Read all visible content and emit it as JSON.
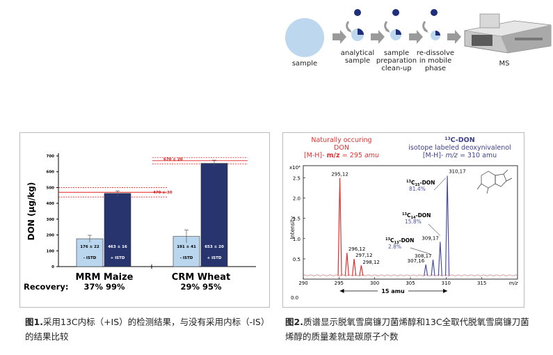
{
  "workflow": {
    "steps": [
      "sample",
      "analytical\nsample",
      "sample\npreparation\nclean-up",
      "re-dissolve\nin mobile\nphase",
      "MS"
    ],
    "colors": {
      "light": "#bcd7ee",
      "dark": "#1f2f7a",
      "arrow": "#9a9a9a"
    }
  },
  "figure1": {
    "chart_data": {
      "type": "bar",
      "ylabel": "DON (μg/kg)",
      "ylim": [
        0,
        700
      ],
      "yticks": [
        0,
        100,
        200,
        300,
        400,
        500,
        600,
        700
      ],
      "groups": [
        {
          "name": "MRM Maize",
          "recovery": "37% 99%",
          "bars": [
            {
              "series": "- ISTD",
              "value": 176,
              "error": 22,
              "label": "176 ± 22"
            },
            {
              "series": "+ ISTD",
              "value": 463,
              "error": 16,
              "label": "463 ± 16"
            }
          ],
          "reference": {
            "value": 470,
            "error": 30,
            "label": "470 ± 30"
          }
        },
        {
          "name": "CRM Wheat",
          "recovery": "29% 95%",
          "bars": [
            {
              "series": "- ISTD",
              "value": 191,
              "error": 41,
              "label": "191 ± 41"
            },
            {
              "series": "+ ISTD",
              "value": 653,
              "error": 20,
              "label": "653 ± 20"
            }
          ],
          "reference": {
            "value": 670,
            "error": 20,
            "label": "670 ± 20"
          }
        }
      ],
      "recovery_label": "Recovery:",
      "colors": {
        "minus_istd": "#b9d6ee",
        "plus_istd": "#27346e",
        "reference": "#e02020"
      }
    },
    "caption_num": "图1.",
    "caption_text": "采用13C内标（+IS）的检测结果，与没有采用内标（-IS）的结果比较"
  },
  "figure2": {
    "header_left": {
      "line1": "Naturally occuring",
      "line2": "DON",
      "line3_pre": "[M-H]-",
      "line3_mz": "m/z",
      "line3_val": "= 295",
      "line3_unit": "amu"
    },
    "header_right": {
      "title": "13C-DON",
      "sup": "13",
      "line2": "isotope labeled deoxynivalenol",
      "line3_pre": "[M-H]-",
      "line3_mz": "m/z",
      "line3_val": "= 310 amu"
    },
    "chart_data": {
      "type": "line",
      "xlabel": "m/z",
      "ylabel": "Intensity",
      "y_exponent": "x10⁴",
      "xlim": [
        290,
        320
      ],
      "ylim": [
        0,
        2.8
      ],
      "xticks": [
        290,
        295,
        300,
        305,
        310,
        315
      ],
      "yticks": [
        0.5,
        1.0,
        1.5,
        2.0,
        2.5
      ],
      "series": [
        {
          "name": "Naturally occuring DON",
          "color": "#e03030",
          "peaks": [
            {
              "x": 295.12,
              "y": 2.5,
              "label": "295,12"
            },
            {
              "x": 296.12,
              "y": 0.65,
              "label": "296,12"
            },
            {
              "x": 297.12,
              "y": 0.5,
              "label": "297,12"
            },
            {
              "x": 298.12,
              "y": 0.34,
              "label": "298,12"
            }
          ]
        },
        {
          "name": "13C-DON",
          "color": "#4a4fa0",
          "peaks": [
            {
              "x": 307.16,
              "y": 0.36,
              "label": "307,16"
            },
            {
              "x": 308.17,
              "y": 0.48,
              "label": "308,17"
            },
            {
              "x": 309.17,
              "y": 0.92,
              "label": "309,17"
            },
            {
              "x": 310.17,
              "y": 2.55,
              "label": "310,17"
            }
          ]
        }
      ],
      "annotations": [
        {
          "pre": "13",
          "sub": "15",
          "name": "C",
          "suffix": "-DON",
          "pct": "81.4%"
        },
        {
          "pre": "13",
          "sub": "14",
          "name": "C",
          "suffix": "-DON",
          "pct": "15.8%"
        },
        {
          "pre": "13",
          "sub": "13",
          "name": "C",
          "suffix": "-DON",
          "pct": "2.8%"
        }
      ],
      "span_label": "15 amu",
      "zero_label": "0.0"
    },
    "caption_num": "图2.",
    "caption_text": "质谱显示脱氧雪腐镰刀菌烯醇和13C全取代脱氧雪腐镰刀菌烯醇的质量差就是碳原子个数"
  }
}
